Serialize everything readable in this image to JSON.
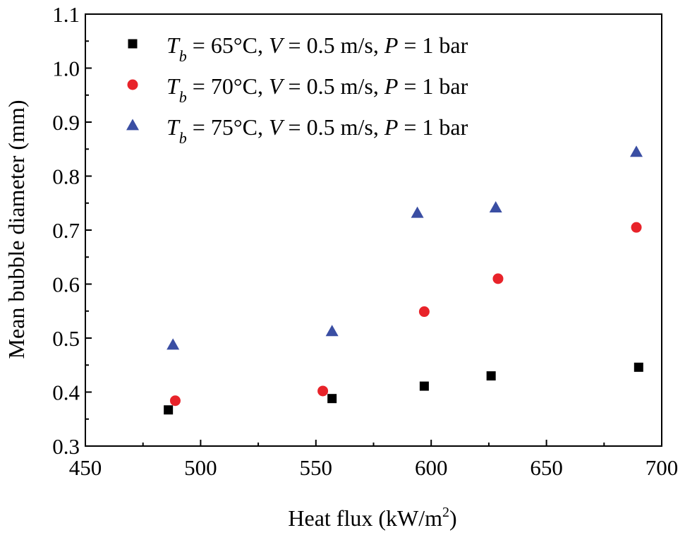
{
  "chart_data": {
    "type": "scatter",
    "xlabel": "Heat flux (kW/m",
    "xlabel_sup": "2",
    "xlabel_close": ")",
    "ylabel": "Mean bubble diameter (mm)",
    "xlim": [
      450,
      700
    ],
    "ylim": [
      0.3,
      1.1
    ],
    "xticks": [
      450,
      500,
      550,
      600,
      650,
      700
    ],
    "xtick_labels": [
      "450",
      "500",
      "550",
      "600",
      "650",
      "700"
    ],
    "yticks": [
      0.3,
      0.4,
      0.5,
      0.6,
      0.7,
      0.8,
      0.9,
      1.0,
      1.1
    ],
    "ytick_labels": [
      "0.3",
      "0.4",
      "0.5",
      "0.6",
      "0.7",
      "0.8",
      "0.9",
      "1.0",
      "1.1"
    ],
    "legend_position": "top-left",
    "series": [
      {
        "name": "Tb = 65°C, V = 0.5 m/s, P = 1 bar",
        "legend": {
          "T": "T",
          "sub": "b",
          "rest1": " = 65°C, ",
          "V": "V",
          "rest2": " = 0.5 m/s, ",
          "P": "P",
          "rest3": " = 1 bar"
        },
        "marker": "square",
        "color": "#000000",
        "x": [
          486,
          557,
          597,
          626,
          690
        ],
        "y": [
          0.367,
          0.388,
          0.411,
          0.43,
          0.446
        ]
      },
      {
        "name": "Tb = 70°C, V = 0.5 m/s, P = 1 bar",
        "legend": {
          "T": "T",
          "sub": "b",
          "rest1": " = 70°C, ",
          "V": "V",
          "rest2": " = 0.5 m/s, ",
          "P": "P",
          "rest3": " = 1 bar"
        },
        "marker": "circle",
        "color": "#e8232a",
        "x": [
          489,
          553,
          597,
          629,
          689
        ],
        "y": [
          0.384,
          0.402,
          0.549,
          0.61,
          0.705
        ]
      },
      {
        "name": "Tb = 75°C, V = 0.5 m/s, P = 1 bar",
        "legend": {
          "T": "T",
          "sub": "b",
          "rest1": " = 75°C, ",
          "V": "V",
          "rest2": " = 0.5 m/s, ",
          "P": "P",
          "rest3": " = 1 bar"
        },
        "marker": "triangle",
        "color": "#3a4ea3",
        "x": [
          488,
          557,
          594,
          628,
          689
        ],
        "y": [
          0.487,
          0.512,
          0.731,
          0.741,
          0.844
        ]
      }
    ]
  }
}
